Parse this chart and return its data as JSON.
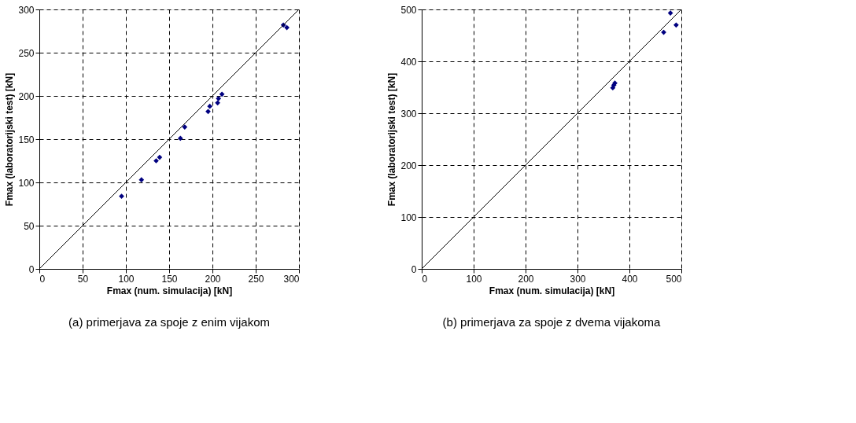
{
  "chart_data": [
    {
      "type": "scatter",
      "xlabel": "Fmax (num. simulacija) [kN]",
      "ylabel": "Fmax (laboratorijski test) [kN]",
      "annotations": [
        "(a) primerjava za spoje z enim vijakom"
      ],
      "xlim": [
        0,
        300
      ],
      "ylim": [
        0,
        300
      ],
      "xticks": [
        0,
        50,
        100,
        150,
        200,
        250,
        300
      ],
      "yticks": [
        0,
        50,
        100,
        150,
        200,
        250,
        300
      ],
      "grid": true,
      "marker": "diamond",
      "series": [
        {
          "color": "#000080",
          "x": [
            95,
            118,
            135,
            139,
            163,
            168,
            195,
            197,
            206,
            207,
            211,
            282,
            286
          ],
          "values": [
            84,
            103,
            125,
            129,
            151,
            164,
            182,
            188,
            192,
            197,
            202,
            282,
            279
          ]
        },
        {
          "type": "line",
          "color": "#000000",
          "marker": "none",
          "line_style": "solid",
          "x": [
            0,
            300
          ],
          "values": [
            0,
            300
          ]
        }
      ]
    },
    {
      "type": "scatter",
      "xlabel": "Fmax (num. simulacija) [kN]",
      "ylabel": "Fmax (laboratorijski test) [kN]",
      "annotations": [
        "(b) primerjava za spoje z dvema vijakoma"
      ],
      "xlim": [
        0,
        500
      ],
      "ylim": [
        0,
        500
      ],
      "xticks": [
        0,
        100,
        200,
        300,
        400,
        500
      ],
      "yticks": [
        0,
        100,
        200,
        300,
        400,
        500
      ],
      "grid": true,
      "marker": "diamond",
      "series": [
        {
          "color": "#000080",
          "x": [
            368,
            370,
            372,
            466,
            479,
            490
          ],
          "values": [
            349,
            354,
            358,
            456,
            493,
            470
          ]
        },
        {
          "type": "line",
          "color": "#000000",
          "marker": "none",
          "line_style": "solid",
          "x": [
            0,
            500
          ],
          "values": [
            0,
            500
          ]
        }
      ]
    }
  ]
}
